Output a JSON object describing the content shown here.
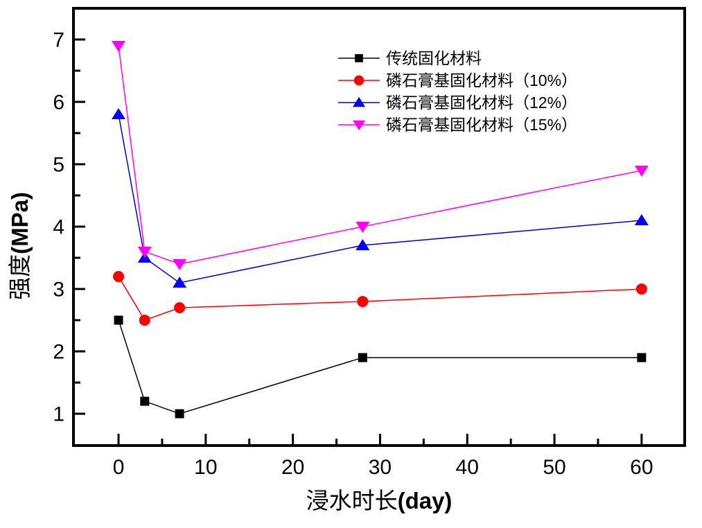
{
  "chart_data": {
    "type": "line",
    "title": "",
    "xlabel": {
      "full": "浸水时长(day)",
      "cjk": "浸水时长",
      "latin": "(day)"
    },
    "ylabel": {
      "full": "强度(MPa)",
      "cjk": "强度",
      "latin": "(MPa)"
    },
    "x": [
      0,
      3,
      7,
      28,
      60
    ],
    "series": [
      {
        "key": "traditional",
        "name": "传统固化材料",
        "marker": "square",
        "marker_color": "#000000",
        "line_color": "#000000",
        "values": [
          2.5,
          1.2,
          1.0,
          1.9,
          1.9
        ]
      },
      {
        "key": "pg-10",
        "name": "磷石膏基固化材料（10%）",
        "marker": "circle",
        "marker_color": "#ff0000",
        "line_color": "#ff0000",
        "values": [
          3.2,
          2.5,
          2.7,
          2.8,
          3.0
        ]
      },
      {
        "key": "pg-12",
        "name": "磷石膏基固化材料（12%）",
        "marker": "triangle-up",
        "marker_color": "#0000ff",
        "line_color": "#0000cd",
        "values": [
          5.8,
          3.5,
          3.1,
          3.7,
          4.1
        ]
      },
      {
        "key": "pg-15",
        "name": "磷石膏基固化材料（15%）",
        "marker": "triangle-down",
        "marker_color": "#ff00ff",
        "line_color": "#ff00ff",
        "values": [
          6.9,
          3.6,
          3.4,
          4.0,
          4.9
        ]
      }
    ],
    "xlim": [
      -5.17,
      64.94
    ],
    "ylim": [
      0.49,
      7.5
    ],
    "xticks": [
      0,
      10,
      20,
      30,
      40,
      50,
      60
    ],
    "xticks_minor": [
      5,
      15,
      25,
      35,
      45,
      55
    ],
    "yticks": [
      1,
      2,
      3,
      4,
      5,
      6,
      7
    ],
    "yticks_minor": [
      1.5,
      2.5,
      3.5,
      4.5,
      5.5,
      6.5
    ],
    "grid": false,
    "legend": {
      "position": "upper-right-inside",
      "border": false
    },
    "axis_color": "#000000",
    "background_color": "#ffffff"
  }
}
